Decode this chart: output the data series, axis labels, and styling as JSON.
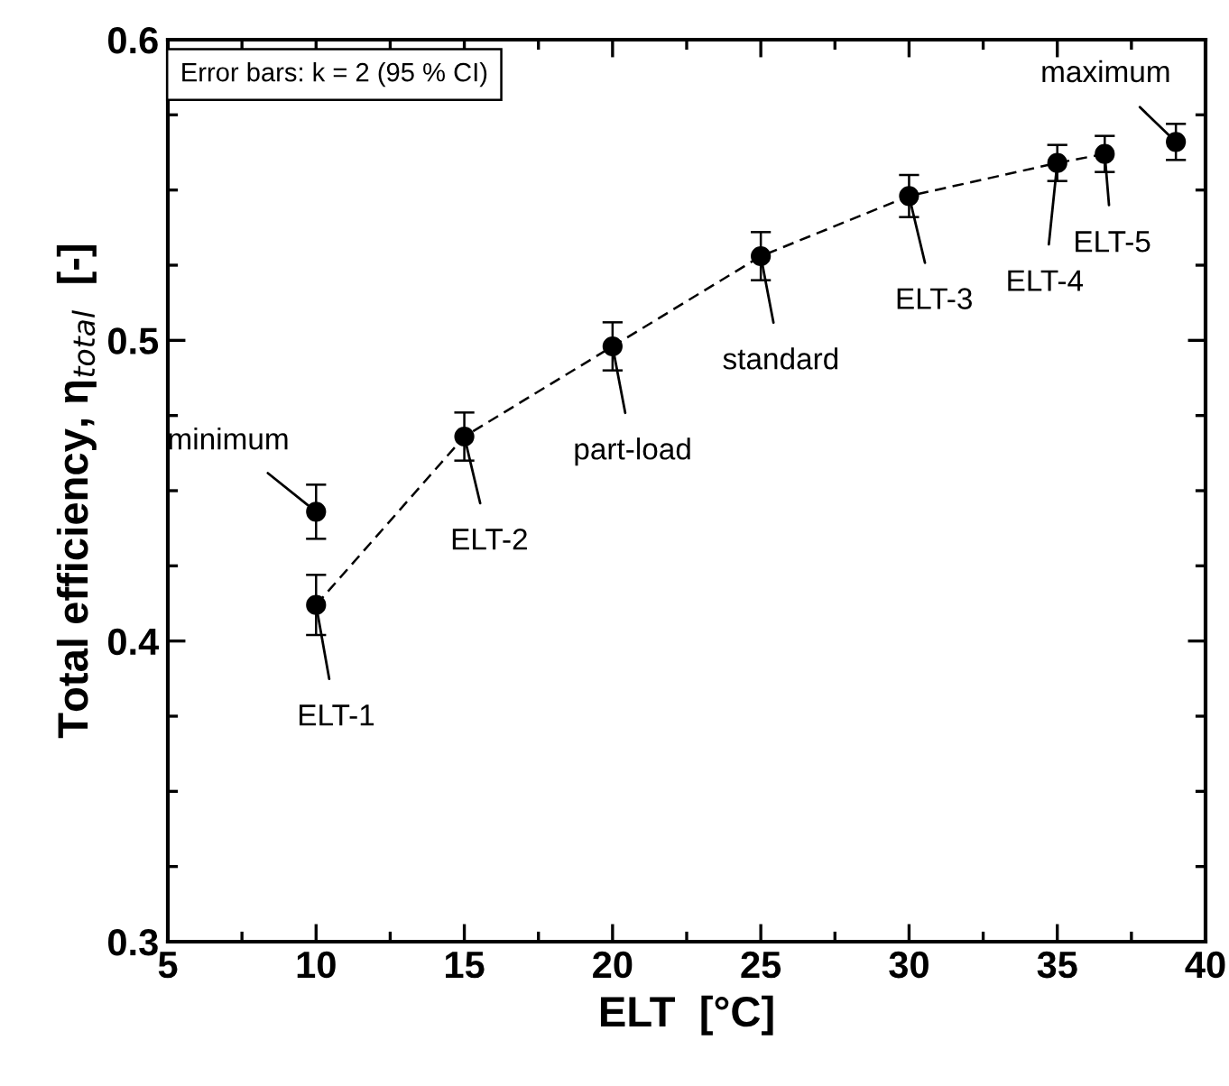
{
  "chart_data": {
    "type": "scatter",
    "xlabel": "ELT  [°C]",
    "ylabel": "Total efficiency, η$_{total}$  [-]",
    "series": [
      {
        "type": "line",
        "color": "#000000",
        "line_style": "dashed",
        "marker": "circle",
        "x": [
          10,
          15,
          20,
          25,
          30,
          35,
          36.6
        ],
        "values": [
          0.412,
          0.468,
          0.498,
          0.528,
          0.548,
          0.559,
          0.562
        ],
        "errors": [
          0.01,
          0.008,
          0.008,
          0.008,
          0.007,
          0.006,
          0.006
        ]
      },
      {
        "color": "#000000",
        "marker": "circle",
        "x": [
          10,
          39
        ],
        "values": [
          0.443,
          0.566
        ],
        "errors": [
          0.009,
          0.006
        ]
      }
    ],
    "annotations": [
      "Error bars: k = 2 (95 % CI)",
      {
        "text": "minimum",
        "x": 10,
        "y": 0.443
      },
      {
        "text": "ELT-1",
        "x": 10,
        "y": 0.412
      },
      {
        "text": "ELT-2",
        "x": 15,
        "y": 0.468
      },
      {
        "text": "part-load",
        "x": 20,
        "y": 0.498
      },
      {
        "text": "standard",
        "x": 25,
        "y": 0.528
      },
      {
        "text": "ELT-3",
        "x": 30,
        "y": 0.548
      },
      {
        "text": "ELT-4",
        "x": 35,
        "y": 0.559
      },
      {
        "text": "ELT-5",
        "x": 36.6,
        "y": 0.562
      },
      {
        "text": "maximum",
        "x": 39,
        "y": 0.566
      }
    ],
    "xlim": [
      5,
      40
    ],
    "ylim": [
      0.3,
      0.6
    ],
    "xticks": [
      5,
      {
        "value": 7.5,
        "label": null
      },
      10,
      {
        "value": 12.5,
        "label": null
      },
      15,
      {
        "value": 17.5,
        "label": null
      },
      20,
      {
        "value": 22.5,
        "label": null
      },
      25,
      {
        "value": 27.5,
        "label": null
      },
      30,
      {
        "value": 32.5,
        "label": null
      },
      35,
      {
        "value": 37.5,
        "label": null
      },
      40
    ],
    "yticks": [
      0.3,
      {
        "value": 0.325,
        "label": null
      },
      {
        "value": 0.35,
        "label": null
      },
      {
        "value": 0.375,
        "label": null
      },
      0.4,
      {
        "value": 0.425,
        "label": null
      },
      {
        "value": 0.45,
        "label": null
      },
      {
        "value": 0.475,
        "label": null
      },
      0.5,
      {
        "value": 0.525,
        "label": null
      },
      {
        "value": 0.55,
        "label": null
      },
      {
        "value": 0.575,
        "label": null
      },
      0.6
    ],
    "grid": false,
    "legend": false
  }
}
